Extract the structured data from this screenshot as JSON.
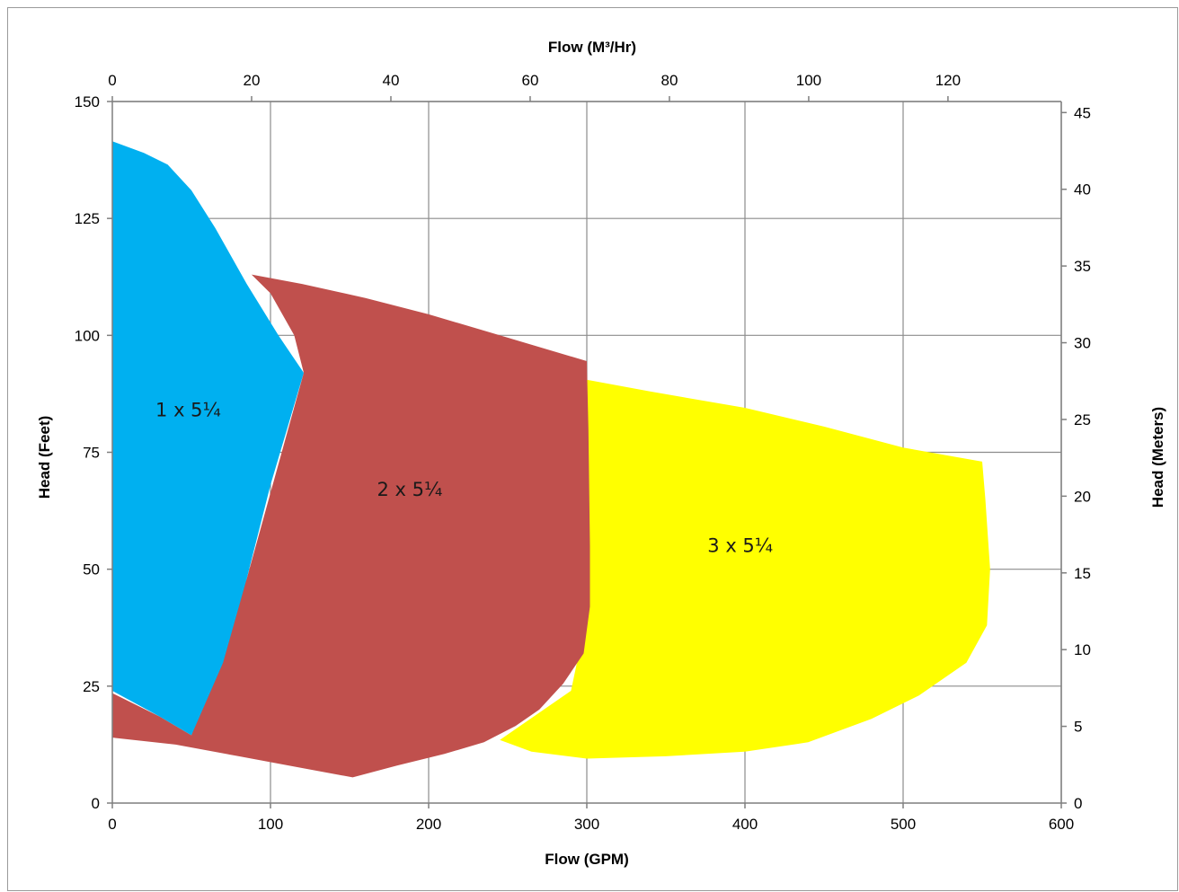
{
  "chart_data": {
    "type": "area",
    "xlabel_bottom": "Flow (GPM)",
    "xlabel_top": "Flow (M³/Hr)",
    "ylabel_left": "Head (Feet)",
    "ylabel_right": "Head (Meters)",
    "xlim_bottom": [
      0,
      600
    ],
    "xlim_top": [
      0,
      136.27
    ],
    "ylim_left": [
      0,
      150
    ],
    "ylim_right": [
      0,
      45.72
    ],
    "x_ticks_bottom": [
      "0",
      "100",
      "200",
      "300",
      "400",
      "500",
      "600"
    ],
    "x_ticks_top": [
      "0",
      "20",
      "40",
      "60",
      "80",
      "100",
      "120"
    ],
    "y_ticks_left": [
      "0",
      "25",
      "50",
      "75",
      "100",
      "125",
      "150"
    ],
    "y_ticks_right": [
      "0",
      "5",
      "10",
      "15",
      "20",
      "25",
      "30",
      "35",
      "40",
      "45"
    ],
    "grid": true,
    "legend": "none",
    "series": [
      {
        "name": "3 x 5¼",
        "color": "#ffff00",
        "points": [
          [
            300,
            90.5
          ],
          [
            340,
            88
          ],
          [
            400,
            84.5
          ],
          [
            450,
            80.5
          ],
          [
            500,
            76
          ],
          [
            550,
            73
          ],
          [
            552,
            65
          ],
          [
            555,
            50
          ],
          [
            553,
            38
          ],
          [
            540,
            30
          ],
          [
            510,
            23
          ],
          [
            480,
            18
          ],
          [
            440,
            13
          ],
          [
            400,
            11
          ],
          [
            350,
            10
          ],
          [
            300,
            9.5
          ],
          [
            265,
            11
          ],
          [
            245,
            13.5
          ],
          [
            290,
            24
          ],
          [
            300,
            40
          ],
          [
            300,
            70
          ]
        ]
      },
      {
        "name": "2 x 5¼",
        "color": "#c0504d",
        "points": [
          [
            88,
            113
          ],
          [
            120,
            111
          ],
          [
            160,
            108
          ],
          [
            200,
            104.5
          ],
          [
            250,
            99.5
          ],
          [
            300,
            94.5
          ],
          [
            301,
            80
          ],
          [
            302,
            55
          ],
          [
            302,
            42
          ],
          [
            298,
            32
          ],
          [
            285,
            25.5
          ],
          [
            270,
            20
          ],
          [
            255,
            16.5
          ],
          [
            235,
            13
          ],
          [
            210,
            10.5
          ],
          [
            180,
            8
          ],
          [
            152,
            5.5
          ],
          [
            120,
            7.5
          ],
          [
            80,
            10
          ],
          [
            40,
            12.5
          ],
          [
            0,
            14
          ],
          [
            0,
            23.5
          ],
          [
            30,
            18.5
          ],
          [
            50,
            14.5
          ],
          [
            85,
            48
          ],
          [
            121,
            92
          ],
          [
            115,
            100
          ],
          [
            100,
            109
          ]
        ]
      },
      {
        "name": "1 x 5¼",
        "color": "#00b0f0",
        "points": [
          [
            0,
            141.5
          ],
          [
            20,
            139
          ],
          [
            35,
            136.5
          ],
          [
            50,
            131
          ],
          [
            65,
            123
          ],
          [
            85,
            111
          ],
          [
            105,
            100
          ],
          [
            121,
            92
          ],
          [
            100,
            68
          ],
          [
            85,
            48
          ],
          [
            70,
            30
          ],
          [
            50,
            14.5
          ],
          [
            30,
            18.5
          ],
          [
            0,
            24
          ]
        ]
      }
    ],
    "annotations": [
      {
        "text": "1 x 5¼",
        "x": 48,
        "y": 84
      },
      {
        "text": "2 x 5¼",
        "x": 188,
        "y": 67
      },
      {
        "text": "3 x 5¼",
        "x": 397,
        "y": 55
      }
    ]
  }
}
